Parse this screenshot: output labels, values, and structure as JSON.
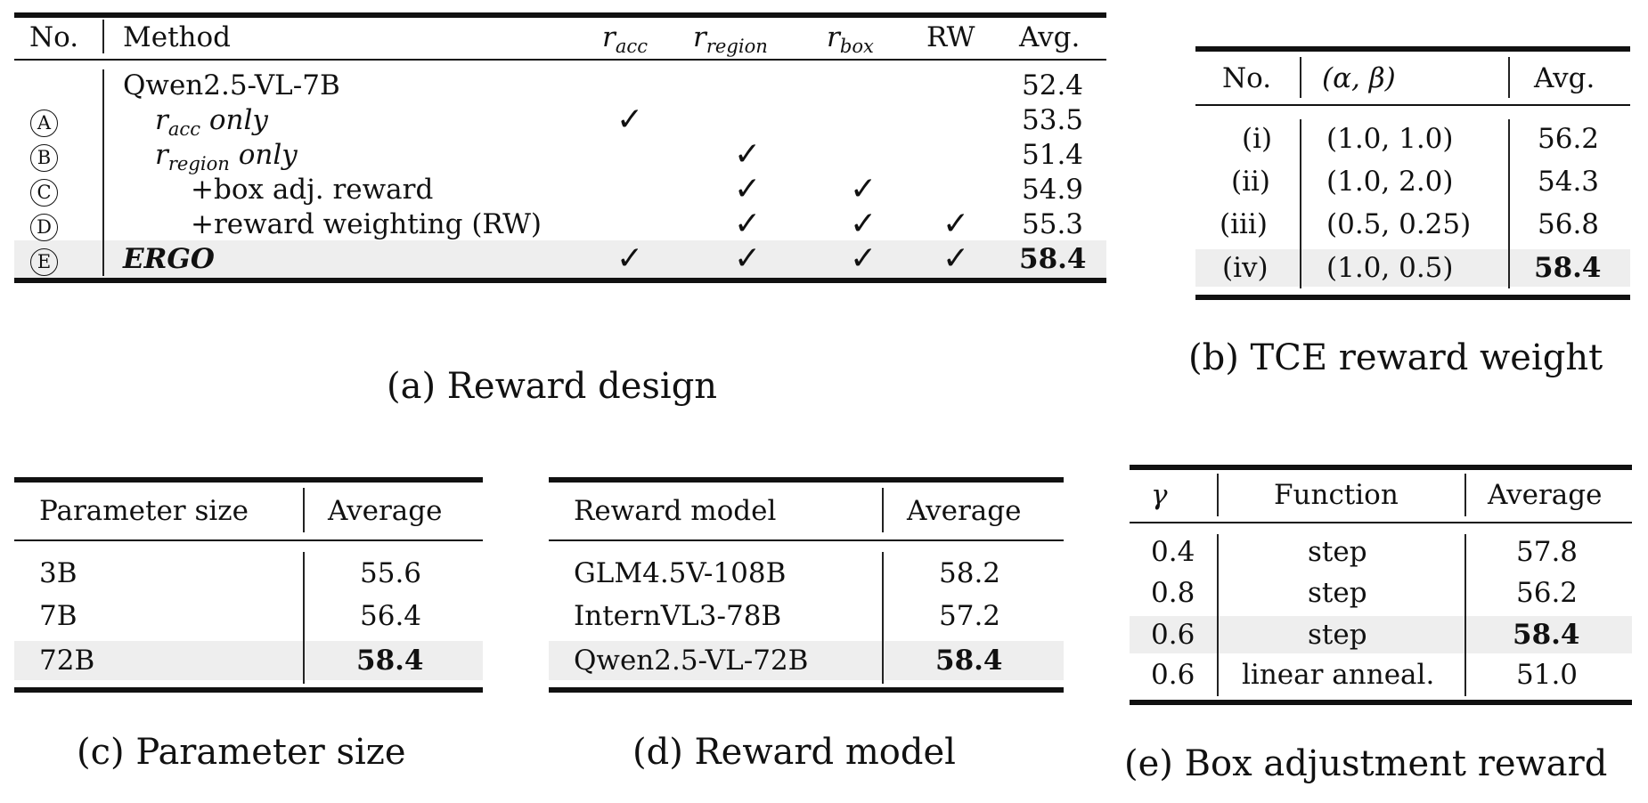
{
  "table_a": {
    "caption": "(a) Reward design",
    "header": {
      "no": "No.",
      "method": "Method",
      "racc": "r",
      "racc_sub": "acc",
      "rregion": "r",
      "rregion_sub": "region",
      "rbox": "r",
      "rbox_sub": "box",
      "rw": "RW",
      "avg": "Avg."
    },
    "rows": [
      {
        "no": "",
        "method": "Qwen2.5-VL-7B",
        "avg": "52.4"
      },
      {
        "no": "A",
        "method_r": "r",
        "method_sub": "acc",
        "method_suffix": " only",
        "avg": "53.5"
      },
      {
        "no": "B",
        "method_r": "r",
        "method_sub": "region",
        "method_suffix": " only",
        "avg": "51.4"
      },
      {
        "no": "C",
        "method": "+box adj. reward",
        "avg": "54.9"
      },
      {
        "no": "D",
        "method": "+reward weighting (RW)",
        "avg": "55.3"
      },
      {
        "no": "E",
        "method": "ERGO",
        "avg": "58.4"
      }
    ],
    "check": "✓"
  },
  "table_b": {
    "caption": "(b) TCE reward weight",
    "header": {
      "no": "No.",
      "ab": "(α, β)",
      "avg": "Avg."
    },
    "rows": [
      {
        "no": "(i)",
        "ab": "(1.0, 1.0)",
        "avg": "56.2"
      },
      {
        "no": "(ii)",
        "ab": "(1.0, 2.0)",
        "avg": "54.3"
      },
      {
        "no": "(iii)",
        "ab": "(0.5, 0.25)",
        "avg": "56.8"
      },
      {
        "no": "(iv)",
        "ab": "(1.0, 0.5)",
        "avg": "58.4"
      }
    ]
  },
  "table_c": {
    "caption": "(c) Parameter size",
    "header": {
      "size": "Parameter size",
      "avg": "Average"
    },
    "rows": [
      {
        "size": "3B",
        "avg": "55.6"
      },
      {
        "size": "7B",
        "avg": "56.4"
      },
      {
        "size": "72B",
        "avg": "58.4"
      }
    ]
  },
  "table_d": {
    "caption": "(d) Reward model",
    "header": {
      "model": "Reward model",
      "avg": "Average"
    },
    "rows": [
      {
        "model": "GLM4.5V-108B",
        "avg": "58.2"
      },
      {
        "model": "InternVL3-78B",
        "avg": "57.2"
      },
      {
        "model": "Qwen2.5-VL-72B",
        "avg": "58.4"
      }
    ]
  },
  "table_e": {
    "caption": "(e) Box adjustment reward",
    "header": {
      "gamma": "γ",
      "func": "Function",
      "avg": "Average"
    },
    "rows": [
      {
        "gamma": "0.4",
        "func": "step",
        "avg": "57.8"
      },
      {
        "gamma": "0.8",
        "func": "step",
        "avg": "56.2"
      },
      {
        "gamma": "0.6",
        "func": "step",
        "avg": "58.4"
      },
      {
        "gamma": "0.6",
        "func": "linear anneal.",
        "avg": "51.0"
      }
    ]
  }
}
